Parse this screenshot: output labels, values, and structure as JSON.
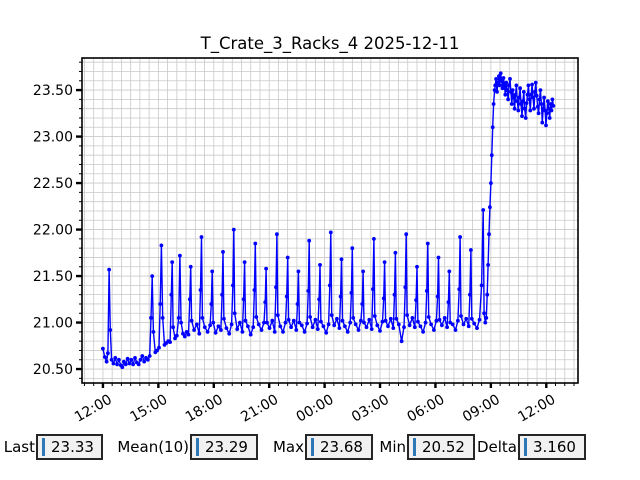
{
  "title": "T_Crate_3_Racks_4 2025-12-11",
  "colors": {
    "series": "#0000ff",
    "grid": "#c9c9c9",
    "frame": "#000000",
    "cursor": "#2e78b8"
  },
  "stats": {
    "items": [
      {
        "label": "Last",
        "value": "23.33"
      },
      {
        "label": "Mean(10)",
        "value": "23.29"
      },
      {
        "label": "Max",
        "value": "23.68"
      },
      {
        "label": "Min",
        "value": "20.52"
      },
      {
        "label": "Delta",
        "value": "3.160"
      }
    ]
  },
  "chart_data": {
    "type": "line",
    "title": "T_Crate_3_Racks_4 2025-12-11",
    "xlabel": "",
    "ylabel": "",
    "legend": null,
    "grid": true,
    "x_tick_labels": [
      "12:00",
      "15:00",
      "18:00",
      "21:00",
      "00:00",
      "03:00",
      "06:00",
      "09:00",
      "12:00"
    ],
    "x_tick_minutes": [
      0,
      180,
      360,
      540,
      720,
      900,
      1080,
      1260,
      1440
    ],
    "x_minor_step_minutes": 30,
    "xlim_minutes": [
      -68,
      1543
    ],
    "y_ticks": [
      20.5,
      21.0,
      21.5,
      22.0,
      22.5,
      23.0,
      23.5
    ],
    "y_tick_labels": [
      "20.50",
      "21.00",
      "21.50",
      "22.00",
      "22.50",
      "23.00",
      "23.50"
    ],
    "y_minor_step": 0.1,
    "ylim": [
      20.35,
      23.845
    ],
    "points": [
      [
        0,
        20.72
      ],
      [
        6,
        20.63
      ],
      [
        12,
        20.58
      ],
      [
        16,
        20.67
      ],
      [
        20,
        21.57
      ],
      [
        24,
        20.92
      ],
      [
        28,
        20.6
      ],
      [
        34,
        20.56
      ],
      [
        40,
        20.62
      ],
      [
        46,
        20.55
      ],
      [
        52,
        20.6
      ],
      [
        58,
        20.54
      ],
      [
        63,
        20.52
      ],
      [
        68,
        20.58
      ],
      [
        74,
        20.55
      ],
      [
        80,
        20.61
      ],
      [
        86,
        20.56
      ],
      [
        92,
        20.6
      ],
      [
        98,
        20.55
      ],
      [
        104,
        20.62
      ],
      [
        110,
        20.57
      ],
      [
        116,
        20.55
      ],
      [
        122,
        20.6
      ],
      [
        128,
        20.64
      ],
      [
        134,
        20.58
      ],
      [
        140,
        20.62
      ],
      [
        146,
        20.6
      ],
      [
        152,
        20.64
      ],
      [
        156,
        21.05
      ],
      [
        160,
        21.5
      ],
      [
        164,
        20.9
      ],
      [
        170,
        20.68
      ],
      [
        176,
        20.7
      ],
      [
        182,
        20.73
      ],
      [
        186,
        21.2
      ],
      [
        190,
        21.83
      ],
      [
        194,
        21.05
      ],
      [
        200,
        20.76
      ],
      [
        206,
        20.78
      ],
      [
        212,
        20.8
      ],
      [
        218,
        20.79
      ],
      [
        222,
        21.3
      ],
      [
        225,
        21.65
      ],
      [
        228,
        20.95
      ],
      [
        234,
        20.83
      ],
      [
        240,
        20.86
      ],
      [
        246,
        21.05
      ],
      [
        250,
        21.72
      ],
      [
        254,
        21.0
      ],
      [
        260,
        20.88
      ],
      [
        266,
        20.85
      ],
      [
        272,
        20.9
      ],
      [
        278,
        20.87
      ],
      [
        282,
        21.25
      ],
      [
        285,
        21.6
      ],
      [
        288,
        21.02
      ],
      [
        296,
        20.92
      ],
      [
        305,
        20.98
      ],
      [
        313,
        20.88
      ],
      [
        317,
        21.35
      ],
      [
        320,
        21.92
      ],
      [
        323,
        21.05
      ],
      [
        331,
        20.95
      ],
      [
        340,
        20.9
      ],
      [
        348,
        20.97
      ],
      [
        352,
        21.2
      ],
      [
        355,
        21.55
      ],
      [
        358,
        21.0
      ],
      [
        366,
        20.89
      ],
      [
        375,
        20.96
      ],
      [
        383,
        20.92
      ],
      [
        387,
        21.3
      ],
      [
        390,
        21.76
      ],
      [
        393,
        21.04
      ],
      [
        401,
        20.94
      ],
      [
        410,
        20.88
      ],
      [
        418,
        20.98
      ],
      [
        422,
        21.4
      ],
      [
        425,
        22.0
      ],
      [
        428,
        21.1
      ],
      [
        436,
        20.93
      ],
      [
        445,
        21.0
      ],
      [
        453,
        20.9
      ],
      [
        457,
        21.25
      ],
      [
        460,
        21.65
      ],
      [
        463,
        21.02
      ],
      [
        471,
        20.96
      ],
      [
        480,
        20.87
      ],
      [
        488,
        20.95
      ],
      [
        492,
        21.35
      ],
      [
        495,
        21.85
      ],
      [
        498,
        21.06
      ],
      [
        506,
        20.98
      ],
      [
        515,
        20.92
      ],
      [
        523,
        21.0
      ],
      [
        527,
        21.22
      ],
      [
        530,
        21.58
      ],
      [
        533,
        21.0
      ],
      [
        541,
        20.94
      ],
      [
        550,
        21.02
      ],
      [
        558,
        20.9
      ],
      [
        562,
        21.38
      ],
      [
        565,
        21.95
      ],
      [
        568,
        21.08
      ],
      [
        576,
        20.96
      ],
      [
        585,
        20.9
      ],
      [
        593,
        21.0
      ],
      [
        597,
        21.28
      ],
      [
        600,
        21.7
      ],
      [
        603,
        21.03
      ],
      [
        611,
        20.95
      ],
      [
        620,
        21.02
      ],
      [
        628,
        20.92
      ],
      [
        632,
        21.2
      ],
      [
        635,
        21.55
      ],
      [
        638,
        21.0
      ],
      [
        646,
        20.97
      ],
      [
        655,
        20.9
      ],
      [
        663,
        20.99
      ],
      [
        667,
        21.34
      ],
      [
        670,
        21.88
      ],
      [
        673,
        21.06
      ],
      [
        681,
        20.95
      ],
      [
        690,
        21.03
      ],
      [
        698,
        20.93
      ],
      [
        702,
        21.25
      ],
      [
        705,
        21.62
      ],
      [
        708,
        21.01
      ],
      [
        716,
        20.96
      ],
      [
        725,
        20.89
      ],
      [
        733,
        20.98
      ],
      [
        737,
        21.4
      ],
      [
        740,
        21.97
      ],
      [
        743,
        21.08
      ],
      [
        751,
        20.97
      ],
      [
        760,
        21.04
      ],
      [
        768,
        20.94
      ],
      [
        772,
        21.28
      ],
      [
        775,
        21.68
      ],
      [
        778,
        21.02
      ],
      [
        786,
        20.96
      ],
      [
        795,
        20.9
      ],
      [
        803,
        21.0
      ],
      [
        807,
        21.32
      ],
      [
        810,
        21.8
      ],
      [
        813,
        21.05
      ],
      [
        821,
        20.98
      ],
      [
        830,
        20.92
      ],
      [
        838,
        21.02
      ],
      [
        842,
        21.2
      ],
      [
        845,
        21.55
      ],
      [
        848,
        21.0
      ],
      [
        856,
        20.95
      ],
      [
        865,
        21.03
      ],
      [
        873,
        20.93
      ],
      [
        877,
        21.36
      ],
      [
        880,
        21.9
      ],
      [
        883,
        21.07
      ],
      [
        891,
        20.97
      ],
      [
        900,
        20.91
      ],
      [
        908,
        21.01
      ],
      [
        912,
        21.26
      ],
      [
        915,
        21.65
      ],
      [
        918,
        21.02
      ],
      [
        926,
        20.96
      ],
      [
        935,
        21.04
      ],
      [
        943,
        20.94
      ],
      [
        947,
        21.3
      ],
      [
        950,
        21.75
      ],
      [
        953,
        21.04
      ],
      [
        961,
        20.98
      ],
      [
        970,
        20.8
      ],
      [
        978,
        20.95
      ],
      [
        982,
        21.38
      ],
      [
        985,
        21.95
      ],
      [
        988,
        21.08
      ],
      [
        996,
        20.97
      ],
      [
        1005,
        21.05
      ],
      [
        1013,
        20.95
      ],
      [
        1017,
        21.24
      ],
      [
        1020,
        21.6
      ],
      [
        1023,
        21.01
      ],
      [
        1031,
        20.96
      ],
      [
        1040,
        20.9
      ],
      [
        1048,
        21.0
      ],
      [
        1052,
        21.34
      ],
      [
        1055,
        21.85
      ],
      [
        1058,
        21.06
      ],
      [
        1066,
        20.98
      ],
      [
        1075,
        20.92
      ],
      [
        1083,
        21.02
      ],
      [
        1087,
        21.28
      ],
      [
        1090,
        21.7
      ],
      [
        1093,
        21.03
      ],
      [
        1101,
        20.97
      ],
      [
        1110,
        21.05
      ],
      [
        1118,
        20.95
      ],
      [
        1122,
        21.22
      ],
      [
        1125,
        21.55
      ],
      [
        1128,
        21.0
      ],
      [
        1136,
        20.98
      ],
      [
        1145,
        20.92
      ],
      [
        1153,
        21.02
      ],
      [
        1157,
        21.36
      ],
      [
        1160,
        21.92
      ],
      [
        1163,
        21.07
      ],
      [
        1171,
        20.98
      ],
      [
        1180,
        21.04
      ],
      [
        1188,
        20.96
      ],
      [
        1192,
        21.3
      ],
      [
        1195,
        21.78
      ],
      [
        1198,
        21.04
      ],
      [
        1206,
        20.99
      ],
      [
        1215,
        20.94
      ],
      [
        1223,
        21.03
      ],
      [
        1230,
        21.4
      ],
      [
        1235,
        22.21
      ],
      [
        1238,
        21.1
      ],
      [
        1242,
        21.0
      ],
      [
        1245,
        21.05
      ],
      [
        1248,
        21.3
      ],
      [
        1251,
        21.62
      ],
      [
        1254,
        21.95
      ],
      [
        1257,
        22.24
      ],
      [
        1260,
        22.5
      ],
      [
        1263,
        22.8
      ],
      [
        1266,
        23.1
      ],
      [
        1269,
        23.35
      ],
      [
        1272,
        23.5
      ],
      [
        1274,
        23.55
      ],
      [
        1277,
        23.62
      ],
      [
        1280,
        23.48
      ],
      [
        1283,
        23.58
      ],
      [
        1286,
        23.65
      ],
      [
        1289,
        23.55
      ],
      [
        1292,
        23.68
      ],
      [
        1295,
        23.6
      ],
      [
        1298,
        23.52
      ],
      [
        1301,
        23.63
      ],
      [
        1304,
        23.55
      ],
      [
        1307,
        23.45
      ],
      [
        1310,
        23.58
      ],
      [
        1313,
        23.5
      ],
      [
        1316,
        23.4
      ],
      [
        1319,
        23.55
      ],
      [
        1322,
        23.62
      ],
      [
        1325,
        23.48
      ],
      [
        1328,
        23.35
      ],
      [
        1331,
        23.5
      ],
      [
        1334,
        23.42
      ],
      [
        1337,
        23.3
      ],
      [
        1340,
        23.45
      ],
      [
        1343,
        23.55
      ],
      [
        1346,
        23.38
      ],
      [
        1349,
        23.28
      ],
      [
        1352,
        23.42
      ],
      [
        1355,
        23.52
      ],
      [
        1358,
        23.35
      ],
      [
        1361,
        23.22
      ],
      [
        1364,
        23.38
      ],
      [
        1367,
        23.48
      ],
      [
        1370,
        23.3
      ],
      [
        1373,
        23.2
      ],
      [
        1376,
        23.36
      ],
      [
        1379,
        23.45
      ],
      [
        1382,
        23.55
      ],
      [
        1385,
        23.4
      ],
      [
        1388,
        23.28
      ],
      [
        1391,
        23.45
      ],
      [
        1394,
        23.56
      ],
      [
        1397,
        23.42
      ],
      [
        1400,
        23.3
      ],
      [
        1403,
        23.48
      ],
      [
        1406,
        23.58
      ],
      [
        1409,
        23.44
      ],
      [
        1412,
        23.32
      ],
      [
        1415,
        23.25
      ],
      [
        1418,
        23.4
      ],
      [
        1421,
        23.5
      ],
      [
        1424,
        23.35
      ],
      [
        1427,
        23.15
      ],
      [
        1430,
        23.3
      ],
      [
        1433,
        23.42
      ],
      [
        1436,
        23.28
      ],
      [
        1439,
        23.12
      ],
      [
        1442,
        23.25
      ],
      [
        1445,
        23.38
      ],
      [
        1448,
        23.3
      ],
      [
        1451,
        23.2
      ],
      [
        1454,
        23.35
      ],
      [
        1457,
        23.28
      ],
      [
        1460,
        23.4
      ],
      [
        1463,
        23.33
      ]
    ]
  }
}
